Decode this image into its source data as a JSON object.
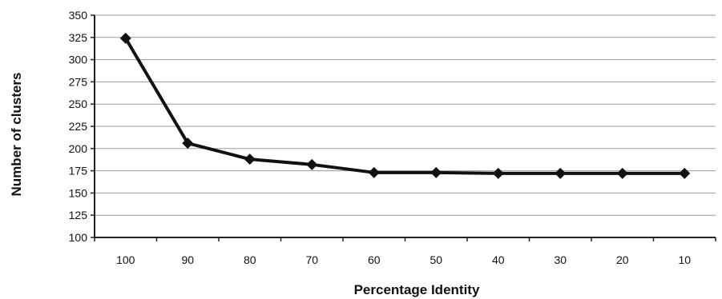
{
  "chart_data": {
    "type": "line",
    "title": "",
    "xlabel": "Percentage Identity",
    "ylabel": "Number of clusters",
    "categories": [
      "100",
      "90",
      "80",
      "70",
      "60",
      "50",
      "40",
      "30",
      "20",
      "10"
    ],
    "series": [
      {
        "values": [
          324,
          206,
          188,
          182,
          173,
          173,
          172,
          172,
          172,
          172
        ]
      }
    ],
    "ylim": [
      100,
      350
    ],
    "yticks": [
      100,
      125,
      150,
      175,
      200,
      225,
      250,
      275,
      300,
      325,
      350
    ],
    "grid": true,
    "legend": "none",
    "marker": "diamond",
    "colors": {
      "line": "#111111",
      "grid": "#9a9a9a",
      "axis": "#222222"
    }
  }
}
